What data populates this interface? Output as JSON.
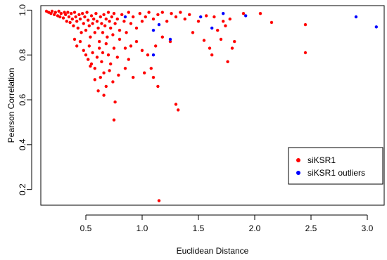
{
  "chart_data": {
    "type": "scatter",
    "xlabel": "Euclidean Distance",
    "ylabel": "Pearson Correlation",
    "xlim": [
      0.1,
      3.15
    ],
    "ylim": [
      0.13,
      1.02
    ],
    "xticks": [
      0.5,
      1.0,
      1.5,
      2.0,
      2.5,
      3.0
    ],
    "xtick_labels": [
      "0.5",
      "1.0",
      "1.5",
      "2.0",
      "2.5",
      "3.0"
    ],
    "yticks": [
      0.2,
      0.4,
      0.6,
      0.8,
      1.0
    ],
    "ytick_labels": [
      "0.2",
      "0.4",
      "0.6",
      "0.8",
      "1.0"
    ],
    "legend_position": "bottom-right",
    "series": [
      {
        "name": "siKSR1",
        "color": "#ff0000",
        "points": [
          [
            0.15,
            0.995
          ],
          [
            0.17,
            0.99
          ],
          [
            0.19,
            0.985
          ],
          [
            0.2,
            0.995
          ],
          [
            0.22,
            0.98
          ],
          [
            0.23,
            0.99
          ],
          [
            0.25,
            0.975
          ],
          [
            0.26,
            0.995
          ],
          [
            0.27,
            0.97
          ],
          [
            0.28,
            0.985
          ],
          [
            0.3,
            0.965
          ],
          [
            0.31,
            0.99
          ],
          [
            0.32,
            0.98
          ],
          [
            0.33,
            0.95
          ],
          [
            0.34,
            0.99
          ],
          [
            0.35,
            0.97
          ],
          [
            0.36,
            0.945
          ],
          [
            0.37,
            0.985
          ],
          [
            0.38,
            0.96
          ],
          [
            0.39,
            0.93
          ],
          [
            0.4,
            0.99
          ],
          [
            0.41,
            0.97
          ],
          [
            0.42,
            0.95
          ],
          [
            0.43,
            0.92
          ],
          [
            0.44,
            0.98
          ],
          [
            0.45,
            0.96
          ],
          [
            0.46,
            0.9
          ],
          [
            0.47,
            0.985
          ],
          [
            0.48,
            0.94
          ],
          [
            0.49,
            0.97
          ],
          [
            0.5,
            0.91
          ],
          [
            0.51,
            0.99
          ],
          [
            0.52,
            0.955
          ],
          [
            0.53,
            0.93
          ],
          [
            0.54,
            0.88
          ],
          [
            0.55,
            0.975
          ],
          [
            0.56,
            0.94
          ],
          [
            0.57,
            0.96
          ],
          [
            0.58,
            0.9
          ],
          [
            0.59,
            0.985
          ],
          [
            0.6,
            0.95
          ],
          [
            0.61,
            0.92
          ],
          [
            0.62,
            0.86
          ],
          [
            0.63,
            0.97
          ],
          [
            0.64,
            0.94
          ],
          [
            0.65,
            0.9
          ],
          [
            0.66,
            0.98
          ],
          [
            0.67,
            0.93
          ],
          [
            0.68,
            0.96
          ],
          [
            0.69,
            0.88
          ],
          [
            0.7,
            0.99
          ],
          [
            0.71,
            0.95
          ],
          [
            0.72,
            0.92
          ],
          [
            0.73,
            0.97
          ],
          [
            0.74,
            0.89
          ],
          [
            0.75,
            0.985
          ],
          [
            0.76,
            0.94
          ],
          [
            0.78,
            0.96
          ],
          [
            0.8,
            0.91
          ],
          [
            0.82,
            0.98
          ],
          [
            0.84,
            0.95
          ],
          [
            0.86,
            0.9
          ],
          [
            0.88,
            0.99
          ],
          [
            0.9,
            0.94
          ],
          [
            0.92,
            0.97
          ],
          [
            0.95,
            0.92
          ],
          [
            0.98,
            0.985
          ],
          [
            1.0,
            0.95
          ],
          [
            1.03,
            0.97
          ],
          [
            1.06,
            0.99
          ],
          [
            1.1,
            0.96
          ],
          [
            1.14,
            0.98
          ],
          [
            1.18,
            0.99
          ],
          [
            1.22,
            0.95
          ],
          [
            1.26,
            0.985
          ],
          [
            1.3,
            0.97
          ],
          [
            1.34,
            0.99
          ],
          [
            1.38,
            0.96
          ],
          [
            1.42,
            0.98
          ],
          [
            0.4,
            0.87
          ],
          [
            0.42,
            0.84
          ],
          [
            0.45,
            0.86
          ],
          [
            0.48,
            0.82
          ],
          [
            0.5,
            0.8
          ],
          [
            0.52,
            0.78
          ],
          [
            0.53,
            0.84
          ],
          [
            0.55,
            0.76
          ],
          [
            0.56,
            0.81
          ],
          [
            0.58,
            0.74
          ],
          [
            0.6,
            0.79
          ],
          [
            0.62,
            0.83
          ],
          [
            0.64,
            0.77
          ],
          [
            0.65,
            0.81
          ],
          [
            0.66,
            0.72
          ],
          [
            0.68,
            0.85
          ],
          [
            0.7,
            0.8
          ],
          [
            0.72,
            0.76
          ],
          [
            0.75,
            0.83
          ],
          [
            0.78,
            0.79
          ],
          [
            0.8,
            0.87
          ],
          [
            0.85,
            0.83
          ],
          [
            0.88,
            0.78
          ],
          [
            0.9,
            0.84
          ],
          [
            0.95,
            0.86
          ],
          [
            1.0,
            0.82
          ],
          [
            1.05,
            0.8
          ],
          [
            1.12,
            0.84
          ],
          [
            1.18,
            0.88
          ],
          [
            1.25,
            0.86
          ],
          [
            0.54,
            0.75
          ],
          [
            0.58,
            0.69
          ],
          [
            0.61,
            0.64
          ],
          [
            0.63,
            0.7
          ],
          [
            0.66,
            0.62
          ],
          [
            0.68,
            0.66
          ],
          [
            0.71,
            0.73
          ],
          [
            0.74,
            0.68
          ],
          [
            0.76,
            0.59
          ],
          [
            0.79,
            0.71
          ],
          [
            0.85,
            0.74
          ],
          [
            0.92,
            0.7
          ],
          [
            1.02,
            0.72
          ],
          [
            1.08,
            0.74
          ],
          [
            1.1,
            0.7
          ],
          [
            1.14,
            0.66
          ],
          [
            0.75,
            0.51
          ],
          [
            1.3,
            0.58
          ],
          [
            1.32,
            0.555
          ],
          [
            1.15,
            0.15
          ],
          [
            1.5,
            0.95
          ],
          [
            1.55,
            0.865
          ],
          [
            1.57,
            0.975
          ],
          [
            1.6,
            0.83
          ],
          [
            1.62,
            0.8
          ],
          [
            1.64,
            0.97
          ],
          [
            1.67,
            0.91
          ],
          [
            1.7,
            0.87
          ],
          [
            1.72,
            0.95
          ],
          [
            1.74,
            0.93
          ],
          [
            1.76,
            0.77
          ],
          [
            1.78,
            0.96
          ],
          [
            1.8,
            0.83
          ],
          [
            1.82,
            0.86
          ],
          [
            1.9,
            0.985
          ],
          [
            2.05,
            0.985
          ],
          [
            2.15,
            0.945
          ],
          [
            2.45,
            0.935
          ],
          [
            2.45,
            0.81
          ],
          [
            1.45,
            0.9
          ]
        ]
      },
      {
        "name": "siKSR1 outliers",
        "color": "#0000ff",
        "points": [
          [
            0.85,
            0.97
          ],
          [
            1.1,
            0.91
          ],
          [
            1.1,
            0.8
          ],
          [
            1.15,
            0.935
          ],
          [
            1.25,
            0.87
          ],
          [
            1.52,
            0.97
          ],
          [
            1.62,
            0.92
          ],
          [
            1.72,
            0.985
          ],
          [
            1.92,
            0.975
          ],
          [
            2.9,
            0.97
          ],
          [
            3.08,
            0.925
          ]
        ]
      }
    ]
  }
}
